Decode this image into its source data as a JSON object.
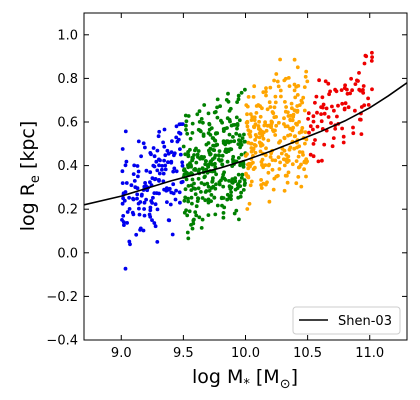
{
  "chart_data": {
    "type": "scatter",
    "xlabel": "log M",
    "xlabel_sub": "*",
    "xlabel_unit_open": " [M",
    "xlabel_unit_sub": "⊙",
    "xlabel_unit_close": "]",
    "ylabel": "log R",
    "ylabel_sub": "e",
    "ylabel_unit": " [kpc]",
    "xlim": [
      8.7,
      11.3
    ],
    "ylim": [
      -0.4,
      1.1
    ],
    "xticks": [
      9.0,
      9.5,
      10.0,
      10.5,
      11.0
    ],
    "xtick_labels": [
      "9.0",
      "9.5",
      "10.0",
      "10.5",
      "11.0"
    ],
    "yticks": [
      -0.4,
      -0.2,
      0.0,
      0.2,
      0.4,
      0.6,
      0.8,
      1.0
    ],
    "ytick_labels": [
      "−0.4",
      "−0.2",
      "0.0",
      "0.2",
      "0.4",
      "0.6",
      "0.8",
      "1.0"
    ],
    "grid": false,
    "legend_position": "lower-right",
    "colors": {
      "bin1": "#0000ee",
      "bin2": "#008000",
      "bin3": "#ffa500",
      "bin4": "#ee0000",
      "line": "#000000"
    },
    "mass_bins": [
      {
        "color_key": "bin1",
        "x_range": [
          9.0,
          9.5
        ],
        "n": 160,
        "y_center_start": 0.22,
        "y_center_end": 0.4,
        "y_spread": 0.34,
        "seed": 11
      },
      {
        "color_key": "bin2",
        "x_range": [
          9.5,
          10.0
        ],
        "n": 330,
        "y_center_start": 0.36,
        "y_center_end": 0.46,
        "y_spread": 0.4,
        "seed": 23
      },
      {
        "color_key": "bin3",
        "x_range": [
          10.0,
          10.5
        ],
        "n": 270,
        "y_center_start": 0.48,
        "y_center_end": 0.58,
        "y_spread": 0.38,
        "seed": 37
      },
      {
        "color_key": "bin4",
        "x_range": [
          10.5,
          11.02
        ],
        "n": 90,
        "y_center_start": 0.58,
        "y_center_end": 0.78,
        "y_spread": 0.3,
        "seed": 53
      }
    ],
    "series": [
      {
        "name": "Shen-03",
        "type": "line",
        "x": [
          8.7,
          9.0,
          9.2,
          9.4,
          9.6,
          9.8,
          10.0,
          10.2,
          10.4,
          10.6,
          10.8,
          11.0,
          11.15,
          11.3
        ],
        "y": [
          0.22,
          0.26,
          0.295,
          0.33,
          0.36,
          0.39,
          0.425,
          0.465,
          0.51,
          0.555,
          0.605,
          0.665,
          0.72,
          0.78
        ]
      }
    ]
  }
}
